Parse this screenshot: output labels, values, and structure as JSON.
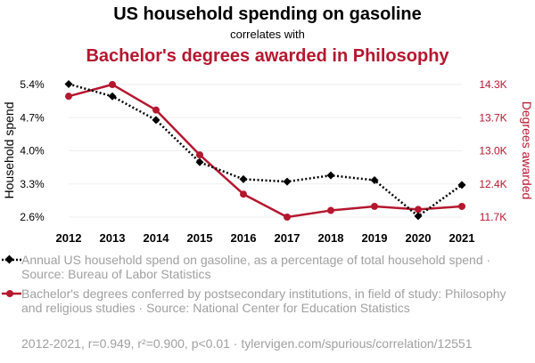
{
  "chart_data": {
    "type": "line",
    "title": "US household spending on gasoline",
    "subtitle": "correlates with",
    "title2": "Bachelor's degrees awarded in Philosophy",
    "x": [
      "2012",
      "2013",
      "2014",
      "2015",
      "2016",
      "2017",
      "2018",
      "2019",
      "2020",
      "2021"
    ],
    "ylabel_left": "Household spend",
    "ylabel_right": "Degrees awarded",
    "y_left_ticks": [
      "5.4%",
      "4.7%",
      "4.0%",
      "3.3%",
      "2.6%"
    ],
    "y_right_ticks": [
      "14.3K",
      "13.7K",
      "13.0K",
      "12.4K",
      "11.7K"
    ],
    "y_left_range": [
      2.6,
      5.4
    ],
    "y_right_range": [
      11700,
      14300
    ],
    "series": [
      {
        "name": "Annual US household spend on gasoline, as a percentage of total household spend · Source: Bureau of Labor Statistics",
        "axis": "left",
        "color": "#000000",
        "style": "dotted",
        "marker": "diamond",
        "values": [
          5.41,
          5.15,
          4.65,
          3.76,
          3.4,
          3.35,
          3.48,
          3.38,
          2.62,
          3.28
        ]
      },
      {
        "name": "Bachelor's degrees conferred by postsecondary institutions, in field of study: Philosophy and religious studies · Source: National Center for Education Statistics",
        "axis": "right",
        "color": "#b5172f",
        "style": "solid",
        "marker": "circle",
        "values": [
          14070,
          14300,
          13800,
          12920,
          12150,
          11700,
          11830,
          11910,
          11850,
          11910
        ]
      }
    ],
    "grid": true
  },
  "footer": "2012-2021, r=0.949, r²=0.900, p<0.01 · tylervigen.com/spurious/correlation/12551"
}
